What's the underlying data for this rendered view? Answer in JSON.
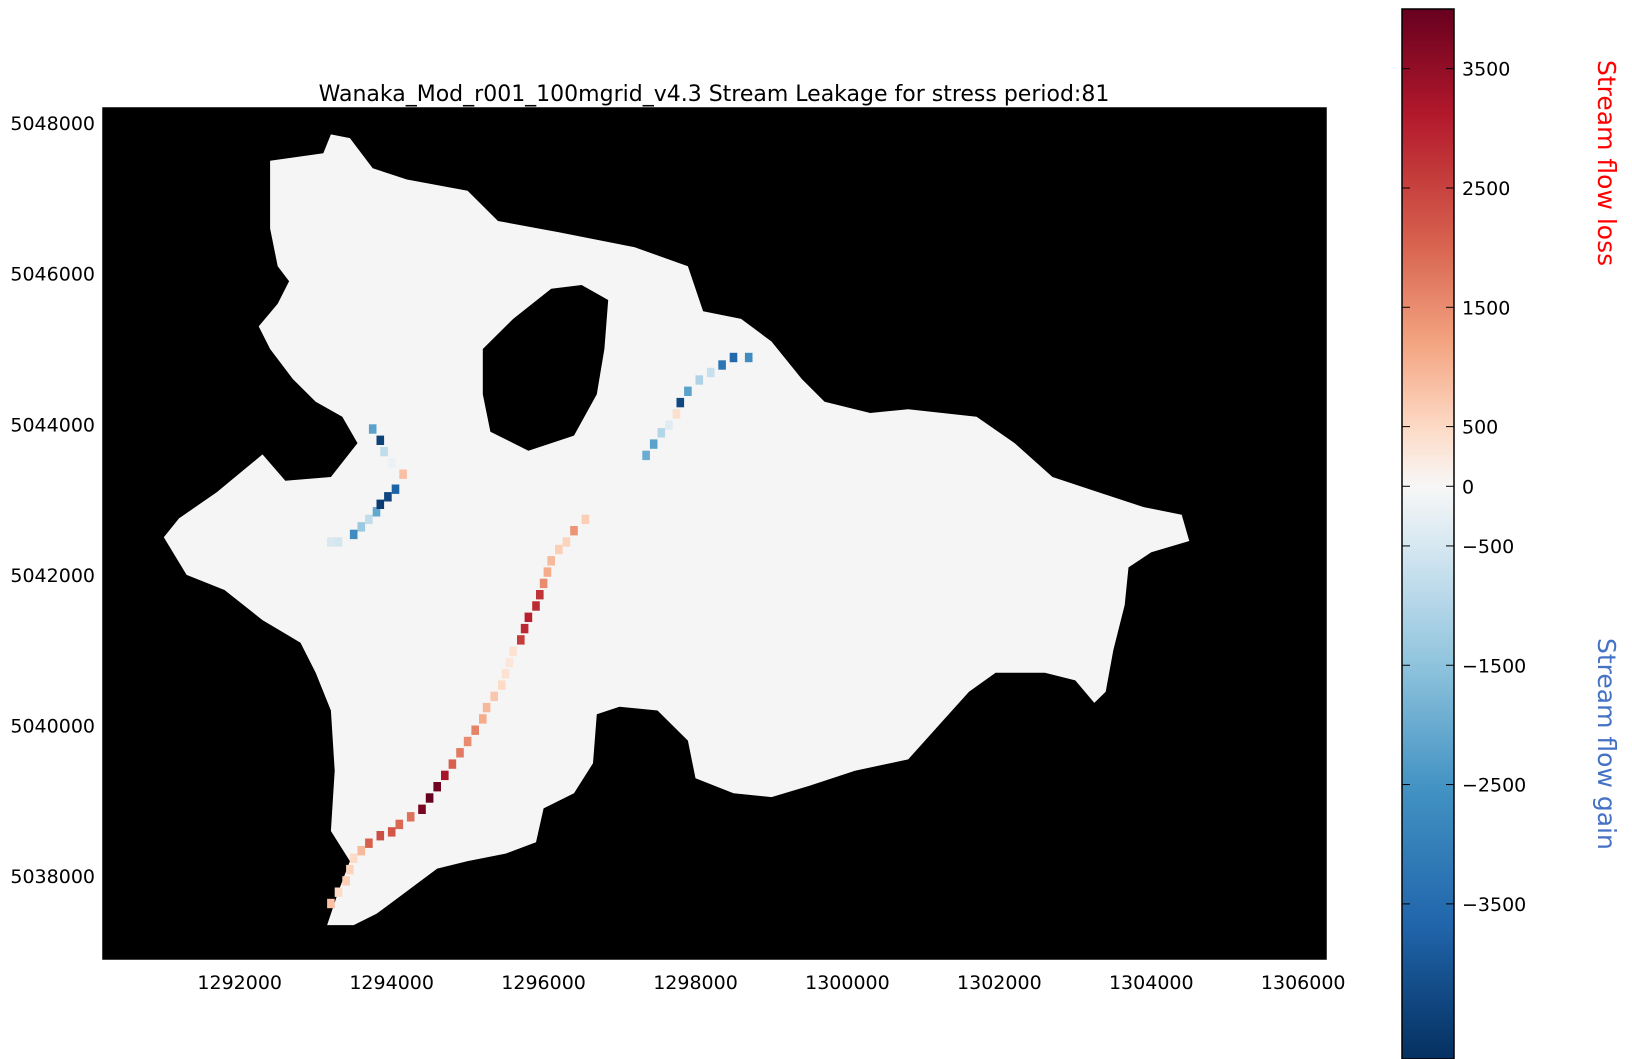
{
  "chart_data": {
    "type": "heatmap",
    "title": "Wanaka_Mod_r001_100mgrid_v4.3 Stream Leakage for stress period:81",
    "xlabel": "",
    "ylabel": "",
    "xlim": [
      1290200,
      1306300
    ],
    "ylim": [
      5036900,
      5048200
    ],
    "xticks": [
      1292000,
      1294000,
      1296000,
      1298000,
      1300000,
      1302000,
      1304000,
      1306000
    ],
    "yticks": [
      5038000,
      5040000,
      5042000,
      5044000,
      5046000,
      5048000
    ],
    "grid": false,
    "background_color": "#000000",
    "domain_fill_color": "#f5f5f5",
    "colormap": "RdBu_r",
    "colorbar": {
      "vmin": -4800,
      "vmax": 4000,
      "ticks": [
        3500,
        2500,
        1500,
        500,
        0,
        -500,
        -1500,
        -2500,
        -3500
      ],
      "tick_labels": [
        "3500",
        "2500",
        "1500",
        "500",
        "0",
        "−500",
        "−1500",
        "−2500",
        "−3500"
      ],
      "upper_label": "Stream flow loss",
      "upper_label_color": "#ff0000",
      "lower_label": "Stream flow gain",
      "lower_label_color": "#4472c4"
    },
    "model_domain_outline": [
      [
        1292400,
        5047500
      ],
      [
        1293100,
        5047600
      ],
      [
        1293200,
        5047850
      ],
      [
        1293450,
        5047800
      ],
      [
        1293750,
        5047400
      ],
      [
        1294200,
        5047250
      ],
      [
        1295000,
        5047100
      ],
      [
        1295400,
        5046700
      ],
      [
        1296200,
        5046550
      ],
      [
        1297200,
        5046350
      ],
      [
        1297900,
        5046100
      ],
      [
        1298100,
        5045500
      ],
      [
        1298600,
        5045400
      ],
      [
        1299000,
        5045100
      ],
      [
        1299400,
        5044600
      ],
      [
        1299700,
        5044300
      ],
      [
        1300300,
        5044150
      ],
      [
        1300800,
        5044200
      ],
      [
        1301700,
        5044100
      ],
      [
        1302200,
        5043750
      ],
      [
        1302700,
        5043300
      ],
      [
        1303300,
        5043100
      ],
      [
        1303900,
        5042900
      ],
      [
        1304400,
        5042800
      ],
      [
        1304500,
        5042450
      ],
      [
        1304000,
        5042300
      ],
      [
        1303700,
        5042100
      ],
      [
        1303650,
        5041600
      ],
      [
        1303500,
        5041000
      ],
      [
        1303400,
        5040450
      ],
      [
        1303250,
        5040300
      ],
      [
        1303000,
        5040600
      ],
      [
        1302600,
        5040700
      ],
      [
        1301950,
        5040700
      ],
      [
        1301600,
        5040450
      ],
      [
        1301200,
        5040000
      ],
      [
        1300800,
        5039550
      ],
      [
        1300100,
        5039400
      ],
      [
        1299500,
        5039200
      ],
      [
        1299000,
        5039050
      ],
      [
        1298500,
        5039100
      ],
      [
        1298000,
        5039300
      ],
      [
        1297900,
        5039800
      ],
      [
        1297500,
        5040200
      ],
      [
        1297000,
        5040250
      ],
      [
        1296700,
        5040150
      ],
      [
        1296650,
        5039500
      ],
      [
        1296400,
        5039100
      ],
      [
        1296000,
        5038900
      ],
      [
        1295900,
        5038450
      ],
      [
        1295500,
        5038300
      ],
      [
        1295000,
        5038200
      ],
      [
        1294600,
        5038100
      ],
      [
        1294200,
        5037800
      ],
      [
        1293800,
        5037500
      ],
      [
        1293500,
        5037350
      ],
      [
        1293150,
        5037350
      ],
      [
        1293300,
        5037800
      ],
      [
        1293450,
        5038200
      ],
      [
        1293200,
        5038600
      ],
      [
        1293250,
        5039400
      ],
      [
        1293200,
        5040200
      ],
      [
        1293000,
        5040700
      ],
      [
        1292800,
        5041100
      ],
      [
        1292300,
        5041400
      ],
      [
        1291800,
        5041800
      ],
      [
        1291300,
        5042000
      ],
      [
        1291000,
        5042500
      ],
      [
        1291200,
        5042750
      ],
      [
        1291700,
        5043100
      ],
      [
        1292000,
        5043350
      ],
      [
        1292300,
        5043600
      ],
      [
        1292600,
        5043250
      ],
      [
        1293200,
        5043300
      ],
      [
        1293550,
        5043750
      ],
      [
        1293350,
        5044100
      ],
      [
        1293000,
        5044300
      ],
      [
        1292700,
        5044600
      ],
      [
        1292400,
        5045000
      ],
      [
        1292250,
        5045300
      ],
      [
        1292500,
        5045600
      ],
      [
        1292650,
        5045900
      ],
      [
        1292500,
        5046100
      ],
      [
        1292400,
        5046600
      ],
      [
        1292400,
        5047500
      ]
    ],
    "inactive_hole_outline": [
      [
        1295200,
        5045000
      ],
      [
        1295600,
        5045400
      ],
      [
        1296100,
        5045800
      ],
      [
        1296500,
        5045850
      ],
      [
        1296850,
        5045650
      ],
      [
        1296800,
        5045000
      ],
      [
        1296700,
        5044400
      ],
      [
        1296400,
        5043850
      ],
      [
        1295800,
        5043650
      ],
      [
        1295300,
        5043900
      ],
      [
        1295200,
        5044400
      ],
      [
        1295200,
        5045000
      ]
    ],
    "stream_cells": [
      [
        1293200,
        5042450,
        -800
      ],
      [
        1293300,
        5042450,
        -900
      ],
      [
        1293500,
        5042550,
        -3000
      ],
      [
        1293600,
        5042650,
        -1800
      ],
      [
        1293700,
        5042750,
        -1200
      ],
      [
        1293800,
        5042850,
        -2500
      ],
      [
        1293850,
        5042950,
        -4600
      ],
      [
        1293950,
        5043050,
        -4400
      ],
      [
        1294050,
        5043150,
        -3900
      ],
      [
        1294150,
        5043350,
        1200
      ],
      [
        1294000,
        5043500,
        -300
      ],
      [
        1293900,
        5043650,
        -1200
      ],
      [
        1293850,
        5043800,
        -4500
      ],
      [
        1293750,
        5043950,
        -2600
      ],
      [
        1293200,
        5037650,
        1200
      ],
      [
        1293300,
        5037800,
        800
      ],
      [
        1293400,
        5037950,
        1000
      ],
      [
        1293450,
        5038100,
        900
      ],
      [
        1293500,
        5038250,
        800
      ],
      [
        1293600,
        5038350,
        1300
      ],
      [
        1293700,
        5038450,
        2400
      ],
      [
        1293850,
        5038550,
        2600
      ],
      [
        1294000,
        5038600,
        2500
      ],
      [
        1294100,
        5038700,
        2300
      ],
      [
        1294250,
        5038800,
        2200
      ],
      [
        1294400,
        5038900,
        3800
      ],
      [
        1294500,
        5039050,
        4000
      ],
      [
        1294600,
        5039200,
        3900
      ],
      [
        1294700,
        5039350,
        3300
      ],
      [
        1294800,
        5039500,
        2400
      ],
      [
        1294900,
        5039650,
        2100
      ],
      [
        1295000,
        5039800,
        1900
      ],
      [
        1295100,
        5039950,
        2000
      ],
      [
        1295200,
        5040100,
        1500
      ],
      [
        1295250,
        5040250,
        1300
      ],
      [
        1295350,
        5040400,
        1100
      ],
      [
        1295450,
        5040550,
        800
      ],
      [
        1295500,
        5040700,
        600
      ],
      [
        1295550,
        5040850,
        500
      ],
      [
        1295600,
        5041000,
        600
      ],
      [
        1295700,
        5041150,
        2800
      ],
      [
        1295750,
        5041300,
        3000
      ],
      [
        1295800,
        5041450,
        3100
      ],
      [
        1295900,
        5041600,
        3000
      ],
      [
        1295950,
        5041750,
        2900
      ],
      [
        1296000,
        5041900,
        1900
      ],
      [
        1296050,
        5042050,
        1500
      ],
      [
        1296100,
        5042200,
        1300
      ],
      [
        1296200,
        5042350,
        1000
      ],
      [
        1296300,
        5042450,
        900
      ],
      [
        1296400,
        5042600,
        1800
      ],
      [
        1296550,
        5042750,
        1000
      ],
      [
        1297350,
        5043600,
        -2400
      ],
      [
        1297450,
        5043750,
        -2600
      ],
      [
        1297550,
        5043900,
        -1400
      ],
      [
        1297650,
        5044000,
        -600
      ],
      [
        1297750,
        5044150,
        700
      ],
      [
        1297800,
        5044300,
        -4400
      ],
      [
        1297900,
        5044450,
        -2600
      ],
      [
        1298050,
        5044600,
        -1500
      ],
      [
        1298200,
        5044700,
        -1100
      ],
      [
        1298350,
        5044800,
        -3500
      ],
      [
        1298500,
        5044900,
        -3800
      ],
      [
        1298700,
        5044900,
        -3000
      ]
    ]
  }
}
